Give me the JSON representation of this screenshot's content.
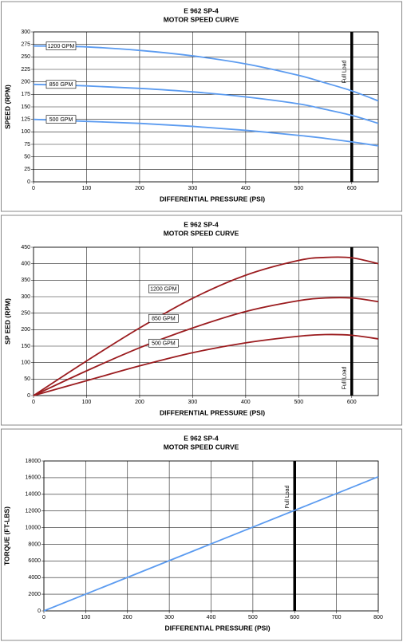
{
  "chart_data": [
    {
      "type": "line",
      "title": "E 962 SP-4",
      "subtitle": "MOTOR SPEED CURVE",
      "x_label": "DIFFERENTIAL PRESSURE (PSI)",
      "y_label": "SPEED (RPM)",
      "x": [
        0,
        100,
        200,
        300,
        400,
        500,
        550,
        600,
        650
      ],
      "series": [
        {
          "name": "1200 GPM",
          "color": "#5b9bf0",
          "values": [
            272,
            270,
            263,
            252,
            236,
            213,
            198,
            182,
            162
          ]
        },
        {
          "name": "850 GPM",
          "color": "#5b9bf0",
          "values": [
            195,
            192,
            187,
            180,
            170,
            156,
            145,
            133,
            117
          ]
        },
        {
          "name": "500 GPM",
          "color": "#5b9bf0",
          "values": [
            125,
            121,
            117,
            111,
            103,
            93,
            87,
            80,
            72
          ]
        }
      ],
      "xlim": [
        0,
        650
      ],
      "xticks": [
        0,
        100,
        200,
        300,
        400,
        500,
        600
      ],
      "ylim": [
        0,
        300
      ],
      "yticks": [
        0,
        25,
        50,
        75,
        100,
        125,
        150,
        175,
        200,
        225,
        250,
        275,
        300
      ],
      "grid": true,
      "full_load": {
        "x": 600,
        "label": "Full Load"
      }
    },
    {
      "type": "line",
      "title": "E 962 SP-4",
      "subtitle": "MOTOR SPEED CURVE",
      "x_label": "DIFFERENTIAL PRESSURE (PSI)",
      "y_label": "SP EED (RPM)",
      "x": [
        0,
        100,
        200,
        300,
        400,
        500,
        550,
        600,
        650
      ],
      "series": [
        {
          "name": "1200 GPM",
          "color": "#9b1c1f",
          "values": [
            0,
            105,
            205,
            295,
            365,
            410,
            419,
            418,
            400
          ]
        },
        {
          "name": "850 GPM",
          "color": "#9b1c1f",
          "values": [
            0,
            75,
            145,
            205,
            255,
            288,
            296,
            296,
            285
          ]
        },
        {
          "name": "500 GPM",
          "color": "#9b1c1f",
          "values": [
            0,
            45,
            90,
            130,
            160,
            180,
            185,
            183,
            172
          ]
        }
      ],
      "xlim": [
        0,
        650
      ],
      "xticks": [
        0,
        100,
        200,
        300,
        400,
        500,
        600
      ],
      "ylim": [
        0,
        450
      ],
      "yticks": [
        0,
        50,
        100,
        150,
        200,
        250,
        300,
        350,
        400,
        450
      ],
      "grid": true,
      "full_load": {
        "x": 600,
        "label": "Full Load"
      }
    },
    {
      "type": "line",
      "title": "E 962 SP-4",
      "subtitle": "MOTOR SPEED CURVE",
      "x_label": "DIFFERENTIAL PRESSURE (PSI)",
      "y_label": "TORQUE (FT-LBS)",
      "x": [
        0,
        800
      ],
      "series": [
        {
          "name": null,
          "color": "#5b9bf0",
          "values": [
            0,
            16100
          ]
        }
      ],
      "xlim": [
        0,
        800
      ],
      "xticks": [
        0,
        100,
        200,
        300,
        400,
        500,
        600,
        700,
        800
      ],
      "ylim": [
        0,
        18000
      ],
      "yticks": [
        0,
        2000,
        4000,
        6000,
        8000,
        10000,
        12000,
        14000,
        16000,
        18000
      ],
      "grid": true,
      "full_load": {
        "x": 600,
        "label": "Full Load"
      }
    }
  ]
}
